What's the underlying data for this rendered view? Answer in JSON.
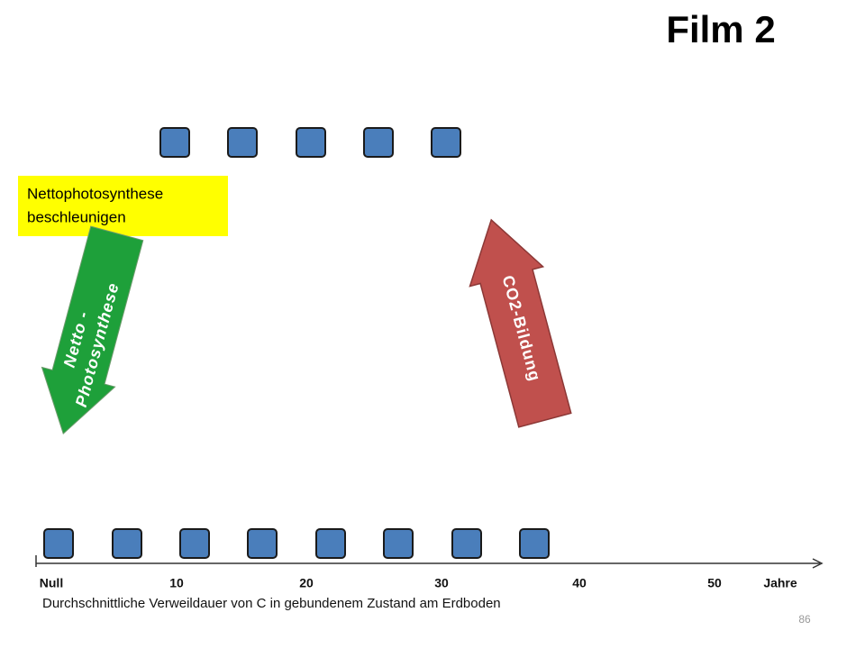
{
  "title": "Film 2",
  "note_box": {
    "lines": [
      "Nettophotosynthese",
      "beschleunigen"
    ]
  },
  "arrows": [
    {
      "lines": [
        "Netto -",
        "Photosynthese"
      ]
    },
    {
      "lines": [
        "CO2-Bildung"
      ]
    }
  ],
  "axis": {
    "labels": [
      "Null",
      "10",
      "20",
      "30",
      "40",
      "50",
      "Jahre"
    ],
    "caption": "Durchschnittliche Verweildauer von C in gebundenem Zustand am Erdboden"
  },
  "page_number": "86"
}
